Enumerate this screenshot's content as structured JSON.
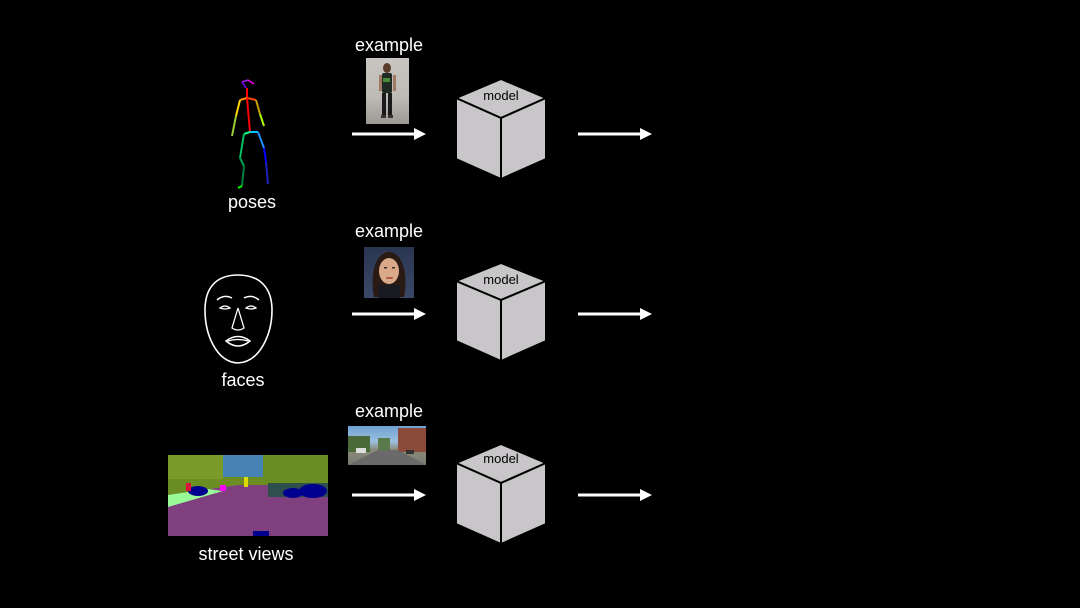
{
  "rows": [
    {
      "input_label": "poses",
      "example_label": "example",
      "model_label": "model",
      "input_icon": "stick-figure-pose-icon",
      "example_image": "person-standing-photo"
    },
    {
      "input_label": "faces",
      "example_label": "example",
      "model_label": "model",
      "input_icon": "face-outline-icon",
      "example_image": "woman-face-photo"
    },
    {
      "input_label": "street views",
      "example_label": "example",
      "model_label": "model",
      "input_icon": "segmentation-map-icon",
      "example_image": "street-photo"
    }
  ],
  "colors": {
    "background": "#000000",
    "cube_face": "#c8c6c8",
    "cube_edge": "#000000",
    "arrow": "#ffffff"
  }
}
